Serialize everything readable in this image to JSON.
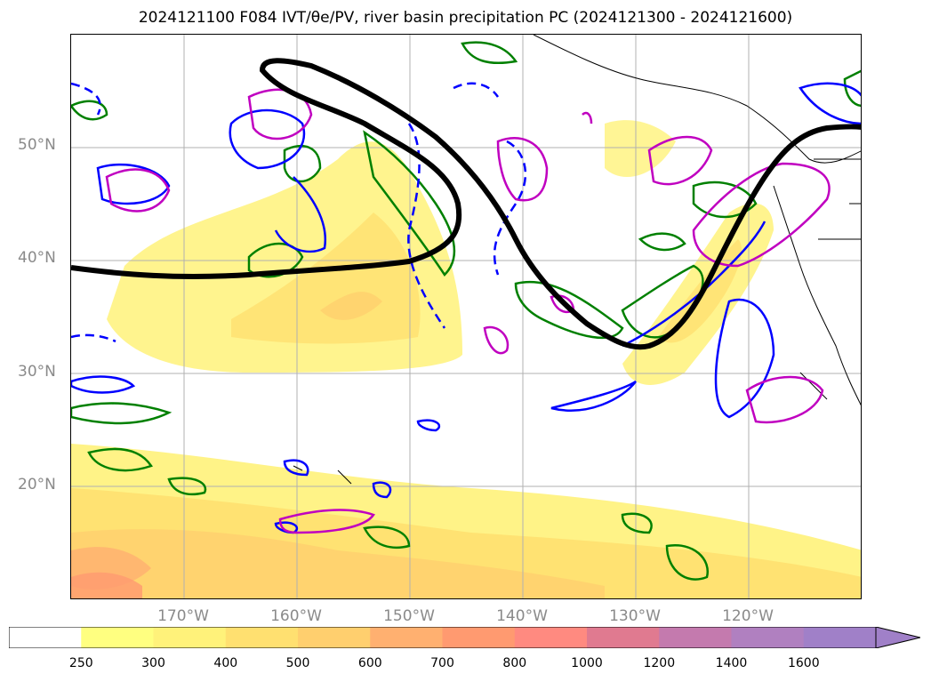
{
  "title_text": "2024121100 F084 IVT/θe/PV, river basin precipitation PC (2024121300 - 2024121600)",
  "lat_labels": [
    "50°N",
    "40°N",
    "30°N",
    "20°N"
  ],
  "lon_labels": [
    "170°W",
    "160°W",
    "150°W",
    "140°W",
    "130°W",
    "120°W"
  ],
  "colorbar": {
    "levels": [
      "250",
      "300",
      "400",
      "500",
      "600",
      "700",
      "800",
      "1000",
      "1200",
      "1400",
      "1600"
    ],
    "colors": [
      "#ffffff",
      "#ffff80",
      "#fff27a",
      "#ffe070",
      "#ffcf6e",
      "#ffb070",
      "#ff9a70",
      "#ff8a80",
      "#e07a90",
      "#c47aae",
      "#b080c0",
      "#a080c8"
    ]
  },
  "overlay_colors": {
    "pv_line": "#000000",
    "theta_e_contour": "#0000ff",
    "precip_contour": "#008000",
    "precip_high_contour": "#c000c0"
  }
}
